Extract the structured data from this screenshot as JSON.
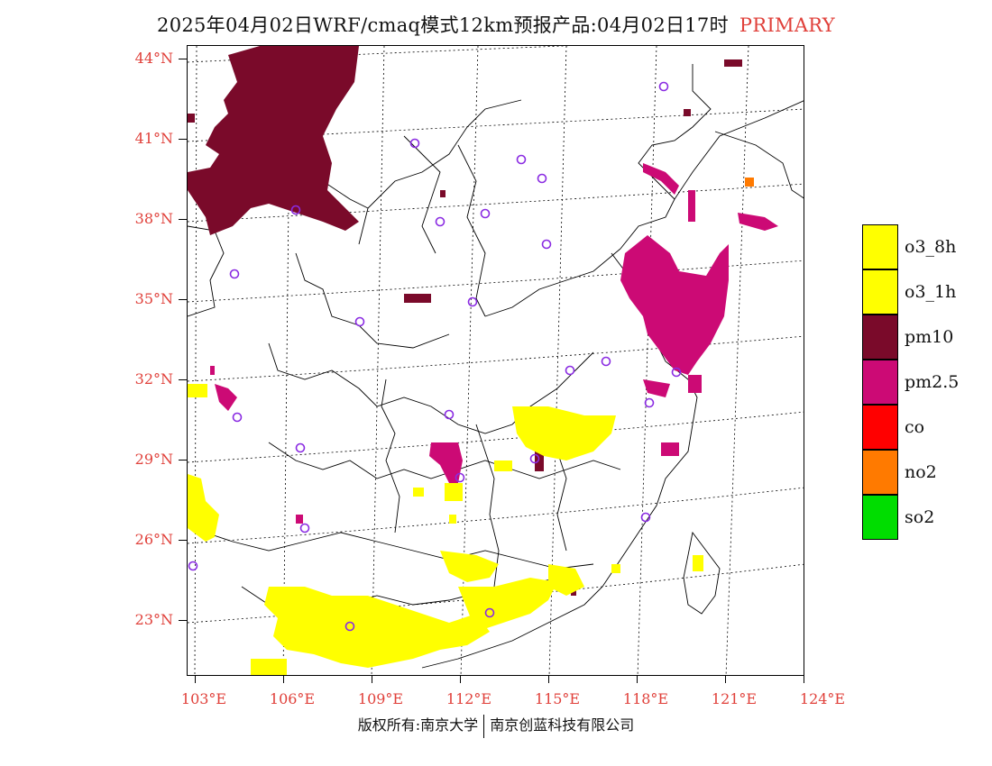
{
  "title": {
    "main": "2025年04月02日WRF/cmaq模式12km预报产品:04月02日17时",
    "tag": "PRIMARY"
  },
  "axes": {
    "lat_labels": [
      "44°N",
      "41°N",
      "38°N",
      "35°N",
      "32°N",
      "29°N",
      "26°N",
      "23°N"
    ],
    "lon_labels": [
      "103°E",
      "106°E",
      "109°E",
      "112°E",
      "115°E",
      "118°E",
      "121°E",
      "124°E"
    ]
  },
  "legend": {
    "items": [
      {
        "label": "o3_8h",
        "color": "#ffff00"
      },
      {
        "label": "o3_1h",
        "color": "#ffff00"
      },
      {
        "label": "pm10",
        "color": "#7a0a2a"
      },
      {
        "label": "pm2.5",
        "color": "#cc0a75"
      },
      {
        "label": "co",
        "color": "#ff0000"
      },
      {
        "label": "no2",
        "color": "#ff7a00"
      },
      {
        "label": "so2",
        "color": "#00dd00"
      }
    ]
  },
  "colors": {
    "label_red": "#e0403a",
    "station_marker": "#8a2be2"
  },
  "copyright": {
    "left": "版权所有:南京大学",
    "right": "南京创蓝科技有限公司"
  }
}
